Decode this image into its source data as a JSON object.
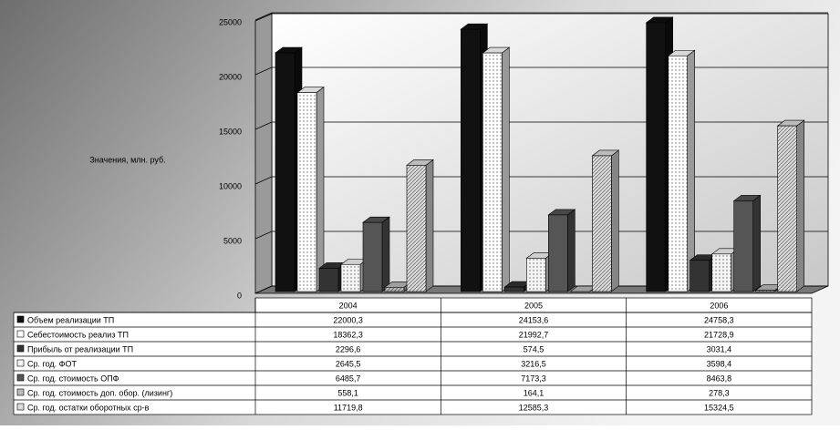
{
  "chart_data": {
    "type": "bar3d",
    "y_label": "Значения, млн. руб.",
    "categories": [
      "2004",
      "2005",
      "2006"
    ],
    "ylim": [
      0,
      25000
    ],
    "yticks": [
      0,
      5000,
      10000,
      15000,
      20000,
      25000
    ],
    "grid": true,
    "series": [
      {
        "name": "Объем реализации ТП",
        "color": "#111111",
        "values": [
          22000.3,
          24153.6,
          24758.3
        ],
        "value_labels": [
          "22000,3",
          "24153,6",
          "24758,3"
        ]
      },
      {
        "name": "Себестоимость реализ ТП",
        "color": "#ffffff",
        "values": [
          18362.3,
          21992.7,
          21728.9
        ],
        "value_labels": [
          "18362,3",
          "21992,7",
          "21728,9"
        ]
      },
      {
        "name": "Прибыль от реализации ТП",
        "color": "#333333",
        "values": [
          2296.6,
          574.5,
          3031.4
        ],
        "value_labels": [
          "2296,6",
          "574,5",
          "3031,4"
        ]
      },
      {
        "name": "Ср. год. ФОТ",
        "color": "#f4f4f4",
        "values": [
          2645.5,
          3216.5,
          3598.4
        ],
        "value_labels": [
          "2645,5",
          "3216,5",
          "3598,4"
        ]
      },
      {
        "name": "Ср. год. стоимость ОПФ",
        "color": "#555555",
        "values": [
          6485.7,
          7173.3,
          8463.8
        ],
        "value_labels": [
          "6485,7",
          "7173,3",
          "8463,8"
        ]
      },
      {
        "name": "Ср. год. стоимость доп. обор. (лизинг)",
        "color": "#bbbbbb",
        "values": [
          558.1,
          164.1,
          278.3
        ],
        "value_labels": [
          "558,1",
          "164,1",
          "278,3"
        ]
      },
      {
        "name": "Ср. год. остатки оборотных ср-в",
        "color": "#dddddd",
        "values": [
          11719.8,
          12585.3,
          15324.5
        ],
        "value_labels": [
          "11719,8",
          "12585,3",
          "15324,5"
        ]
      }
    ]
  }
}
